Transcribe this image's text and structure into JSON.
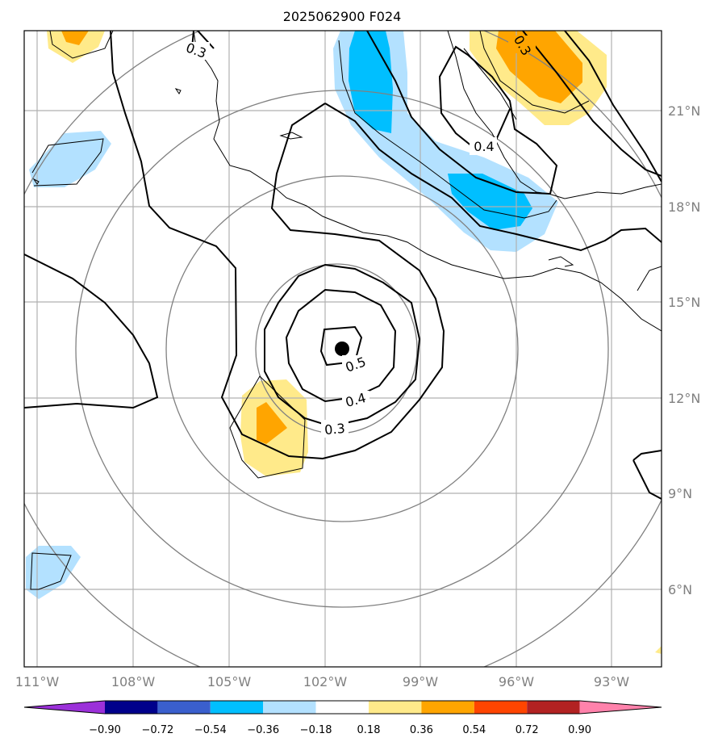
{
  "title": "2025062900 F024",
  "map": {
    "projection": "lat-lon",
    "lon_range": [
      -112,
      -91
    ],
    "lat_range": [
      3,
      23
    ],
    "lon_ticks": [
      "111°W",
      "108°W",
      "105°W",
      "102°W",
      "99°W",
      "96°W",
      "93°W"
    ],
    "lat_ticks": [
      "21°N",
      "18°N",
      "15°N",
      "12°N",
      "9°N",
      "6°N"
    ],
    "center_marker": {
      "lon": -101.5,
      "lat": 13.5
    },
    "range_rings": "concentric gray circles around center",
    "contour_labels": [
      "0.3",
      "0.4",
      "0.5",
      "0.4",
      "0.3",
      "0.3"
    ]
  },
  "colorbar": {
    "ticks": [
      "−0.90",
      "−0.72",
      "−0.54",
      "−0.36",
      "−0.18",
      "0.18",
      "0.36",
      "0.54",
      "0.72",
      "0.90"
    ],
    "colors": [
      "#9b30d9",
      "#00008b",
      "#3a5fcd",
      "#00bfff",
      "#b3e1ff",
      "#ffffff",
      "#ffea8a",
      "#ffa500",
      "#ff4500",
      "#b22222",
      "#ff82ab"
    ],
    "extend": "both"
  }
}
